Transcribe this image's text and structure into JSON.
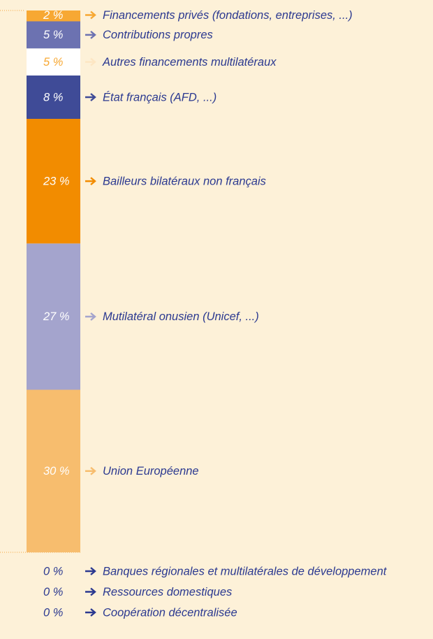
{
  "chart_data": {
    "type": "stacked_bar",
    "categories": [
      "Union Européenne",
      "Mutilatéral onusien (Unicef, ...)",
      "Bailleurs bilatéraux non français",
      "État français (AFD, ...)",
      "Autres financements multilatéraux",
      "Contributions propres",
      "Financements privés (fondations, entreprises, ...)",
      "Banques régionales et multilatérales de développement",
      "Ressources domestiques",
      "Coopération décentralisée"
    ],
    "values": [
      30,
      27,
      23,
      8,
      5,
      5,
      2,
      0,
      0,
      0
    ],
    "value_labels": [
      "30 %",
      "27 %",
      "23 %",
      "8 %",
      "5 %",
      "5 %",
      "2 %",
      "0 %",
      "0 %",
      "0 %"
    ],
    "colors": [
      "#f7bd6e",
      "#a4a4cd",
      "#f28c00",
      "#3f4b97",
      "#ffffff",
      "#6c72b1",
      "#f7a833",
      "#2b3990",
      "#2b3990",
      "#2b3990"
    ],
    "text_colors": [
      "#ffffff",
      "#ffffff",
      "#ffffff",
      "#ffffff",
      "#f7a833",
      "#ffffff",
      "#ffffff",
      "#2b3990",
      "#2b3990",
      "#2b3990"
    ],
    "arrow_colors": [
      "#f7bd6e",
      "#a4a4cd",
      "#f28c00",
      "#3f4b97",
      "#fde6c3",
      "#6c72b1",
      "#f7a833",
      "#2b3990",
      "#2b3990",
      "#2b3990"
    ],
    "label_color": "#2b3990",
    "ylim": [
      0,
      100
    ]
  }
}
